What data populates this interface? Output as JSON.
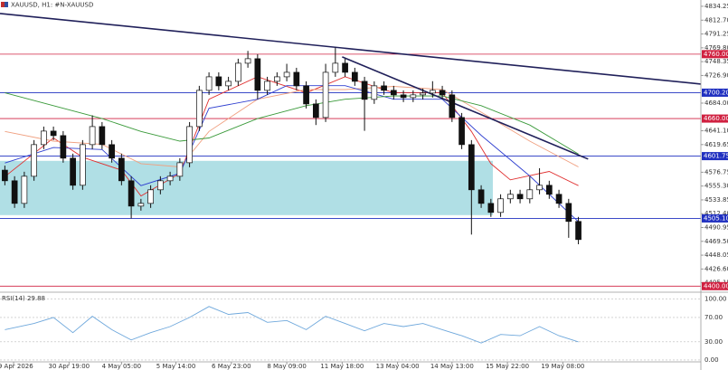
{
  "header": {
    "text": "XAUUSD, H1: #N-XAUUSD"
  },
  "chart_data": [
    {
      "type": "candlestick",
      "open": [
        4580,
        4563.5,
        4528.4,
        4570.5,
        4619.6,
        4640.6,
        4633.6,
        4598.6,
        4556.5,
        4619.6,
        4647.6,
        4619.6,
        4598.6,
        4563.5,
        4524.2,
        4528.4,
        4549.5,
        4563.5,
        4570.5,
        4591.5,
        4647.6,
        4703.8,
        4724.8,
        4710.8,
        4717.8,
        4745.9,
        4752.9,
        4703.8,
        4717.8,
        4724.8,
        4731.8,
        4710.8,
        4682.7,
        4661.7,
        4731.8,
        4745.9,
        4731.8,
        4717.8,
        4689.8,
        4710.8,
        4703.8,
        4696.8,
        4692.6,
        4696.8,
        4699.6,
        4703.8,
        4696.8,
        4661.7,
        4619.6,
        4549.5,
        4528.4,
        4514.4,
        4535.5,
        4542.5,
        4535.5,
        4549.5,
        4556.5,
        4542.5,
        4528.4,
        4500.4
      ],
      "high": [
        4587,
        4570.5,
        4577.5,
        4626.6,
        4647.6,
        4647.6,
        4640.6,
        4605.6,
        4626.6,
        4665,
        4654.6,
        4626.6,
        4605.6,
        4570.5,
        4535.4,
        4556.5,
        4570.5,
        4577.5,
        4598.5,
        4654.6,
        4710.8,
        4731.8,
        4731.8,
        4724.8,
        4752.9,
        4765,
        4759.9,
        4724.8,
        4731.8,
        4745,
        4738.8,
        4717.8,
        4689.7,
        4745,
        4770,
        4752.9,
        4738.8,
        4724.8,
        4717.8,
        4717.8,
        4710.8,
        4703.8,
        4703.8,
        4706.6,
        4718,
        4710.8,
        4703.8,
        4668.7,
        4626.6,
        4556.5,
        4535.4,
        4542.5,
        4549.5,
        4549.5,
        4570,
        4583,
        4563.5,
        4549.5,
        4535.4,
        4507.4
      ],
      "low": [
        4556.5,
        4521.4,
        4521.4,
        4563.5,
        4612.6,
        4626.6,
        4591.6,
        4549.5,
        4549.5,
        4612.6,
        4612.6,
        4591.6,
        4556.5,
        4505,
        4517.2,
        4521.4,
        4542.5,
        4556.5,
        4563.5,
        4584.5,
        4640.6,
        4696.8,
        4703.8,
        4703.8,
        4710.8,
        4738.9,
        4690,
        4696.8,
        4710.8,
        4717.8,
        4703.8,
        4675.7,
        4650,
        4654.7,
        4724.8,
        4724.8,
        4710.8,
        4641,
        4682.8,
        4696.8,
        4689.8,
        4685.6,
        4685.6,
        4689.8,
        4692.6,
        4689.8,
        4654.7,
        4612.6,
        4480,
        4521.4,
        4507.4,
        4507.4,
        4528.5,
        4528.5,
        4528.5,
        4542.5,
        4535.5,
        4521.4,
        4475,
        4465
      ],
      "close": [
        4563.5,
        4528.4,
        4570.5,
        4619.6,
        4640.6,
        4633.6,
        4598.6,
        4556.5,
        4619.6,
        4647.6,
        4619.6,
        4598.6,
        4563.5,
        4524.2,
        4528.4,
        4549.5,
        4563.5,
        4570.5,
        4591.5,
        4647.6,
        4703.8,
        4724.8,
        4710.8,
        4717.8,
        4745.9,
        4752.9,
        4703.8,
        4717.8,
        4724.8,
        4731.8,
        4710.8,
        4682.7,
        4661.7,
        4731.8,
        4745.9,
        4731.8,
        4717.8,
        4689.8,
        4710.8,
        4703.8,
        4696.8,
        4692.6,
        4696.8,
        4699.6,
        4703.8,
        4696.8,
        4661.7,
        4619.6,
        4549.5,
        4528.4,
        4514.4,
        4535.5,
        4542.5,
        4535.5,
        4549.5,
        4556.5,
        4542.5,
        4528.4,
        4500.4,
        4472.3
      ],
      "series": [
        {
          "color": "#e03030",
          "x": [
            0,
            5,
            8,
            12,
            14,
            18,
            21,
            26,
            31,
            35,
            40,
            45,
            48,
            50,
            52,
            56,
            59
          ],
          "values": [
            4570,
            4630,
            4600,
            4580,
            4540,
            4575,
            4690,
            4725,
            4700,
            4725,
            4700,
            4700,
            4640,
            4590,
            4565,
            4578,
            4556
          ]
        },
        {
          "color": "#f0a080",
          "x": [
            0,
            5,
            10,
            14,
            18,
            21,
            26,
            31,
            35,
            40,
            45,
            49,
            54,
            59
          ],
          "values": [
            4640,
            4625,
            4620,
            4590,
            4585,
            4640,
            4690,
            4705,
            4705,
            4710,
            4705,
            4670,
            4625,
            4585
          ]
        },
        {
          "color": "#3040d0",
          "x": [
            0,
            5,
            10,
            14,
            18,
            21,
            26,
            29,
            35,
            40,
            45,
            49,
            54,
            59
          ],
          "values": [
            4591,
            4615,
            4612,
            4556,
            4575,
            4676,
            4690,
            4711,
            4711,
            4690,
            4690,
            4634,
            4571,
            4500
          ]
        },
        {
          "color": "#3a9a3a",
          "x": [
            0,
            5,
            10,
            14,
            18,
            21,
            26,
            31,
            35,
            40,
            45,
            49,
            54,
            59
          ],
          "values": [
            4700,
            4680,
            4660,
            4640,
            4625,
            4630,
            4660,
            4680,
            4690,
            4695,
            4695,
            4680,
            4650,
            4605
          ]
        }
      ],
      "levels": [
        {
          "value": 4760,
          "label": "4760.00",
          "color": "#d02040"
        },
        {
          "value": 4700.2,
          "label": "4700.20",
          "color": "#2030c0"
        },
        {
          "value": 4660,
          "label": "4660.00",
          "color": "#d02040"
        },
        {
          "value": 4601.75,
          "label": "4601.75",
          "color": "#2030c0"
        },
        {
          "value": 4505.1,
          "label": "4505.10",
          "color": "#2030c0"
        },
        {
          "value": 4400,
          "label": "4400.00",
          "color": "#d02040"
        }
      ],
      "trendlines": [
        {
          "x": [
            -0.5,
            71.6
          ],
          "values": [
            4823,
            4713.6
          ],
          "color": "#20205a"
        },
        {
          "x": [
            34.7,
            60
          ],
          "values": [
            4755.7,
            4597.2
          ],
          "color": "#20205a"
        }
      ],
      "zones": [
        {
          "x": [
            -0.5,
            50.2
          ],
          "values": [
            4594.4,
            4510.2
          ],
          "color": "#b0dfe5"
        }
      ],
      "xlim": [
        -0.5,
        71.6
      ],
      "xticks": [
        {
          "value": 0.9,
          "label": "29 Apr 2026"
        },
        {
          "value": 6.6,
          "label": "30 Apr 19:00"
        },
        {
          "value": 12,
          "label": "4 May 05:00"
        },
        {
          "value": 17.6,
          "label": "5 May 14:00"
        },
        {
          "value": 23.3,
          "label": "6 May 23:00"
        },
        {
          "value": 29,
          "label": "8 May 09:00"
        },
        {
          "value": 34.7,
          "label": "11 May 18:00"
        },
        {
          "value": 40.4,
          "label": "13 May 04:00"
        },
        {
          "value": 46,
          "label": "14 May 13:00"
        },
        {
          "value": 51.7,
          "label": "15 May 22:00"
        },
        {
          "value": 57.4,
          "label": "19 May 08:00"
        }
      ],
      "ylim": [
        4392,
        4844
      ],
      "yticks": [
        4834.25,
        {
          "value": 4812.7,
          "label": "4812.70"
        },
        4791.25,
        {
          "value": 4769.8,
          "label": "4769.80"
        },
        4748.35,
        {
          "value": 4726.9,
          "label": "4726.90"
        },
        {
          "value": 4684,
          "label": "4684.00"
        },
        {
          "value": 4641.1,
          "label": "4641.10"
        },
        4619.65,
        4576.75,
        {
          "value": 4555.3,
          "label": "4555.30"
        },
        4533.85,
        {
          "value": 4512.4,
          "label": "4512.40"
        },
        4490.95,
        {
          "value": 4469.5,
          "label": "4469.50"
        },
        4448.05,
        {
          "value": 4426.6,
          "label": "4426.60"
        },
        4405.15
      ]
    },
    {
      "type": "line",
      "title": "RSI(14) 29.88",
      "color": "#6fa8dc",
      "x": [
        0,
        3,
        5,
        7,
        9,
        11,
        13,
        15,
        17,
        19,
        21,
        23,
        25,
        27,
        29,
        31,
        33,
        35,
        37,
        39,
        41,
        43,
        45,
        47,
        49,
        51,
        53,
        55,
        57,
        59
      ],
      "values": [
        50,
        60,
        70,
        45,
        72,
        50,
        33,
        45,
        55,
        70,
        88,
        75,
        78,
        62,
        65,
        50,
        72,
        60,
        48,
        60,
        55,
        60,
        50,
        40,
        28,
        42,
        40,
        55,
        40,
        29.88
      ],
      "xlim": [
        -0.5,
        71.6
      ],
      "ylim": [
        -3,
        110
      ],
      "yticks": [
        {
          "value": 100,
          "label": "100.00"
        },
        {
          "value": 70,
          "label": "70.00"
        },
        {
          "value": 30,
          "label": "30.00"
        },
        {
          "value": 0,
          "label": "0.00"
        }
      ]
    }
  ]
}
